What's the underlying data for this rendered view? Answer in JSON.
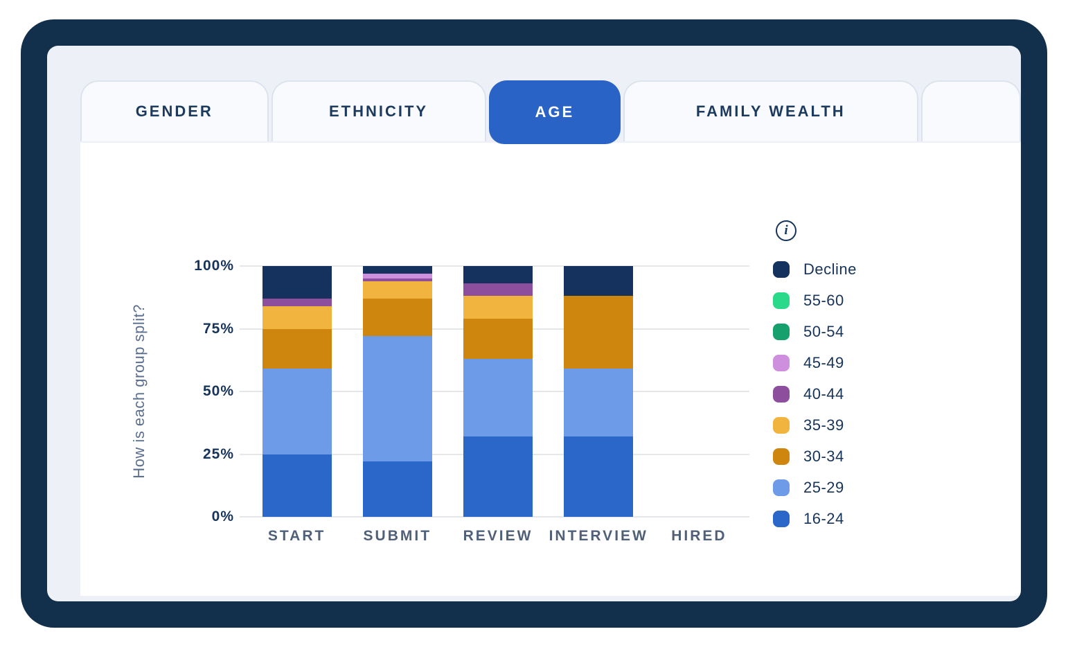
{
  "tabs": [
    {
      "label": "GENDER",
      "active": false
    },
    {
      "label": "ETHNICITY",
      "active": false
    },
    {
      "label": "AGE",
      "active": true
    },
    {
      "label": "FAMILY WEALTH",
      "active": false
    },
    {
      "label": "",
      "active": false
    }
  ],
  "legend": {
    "info_glyph": "i"
  },
  "colors": {
    "frame": "#122f4c",
    "screen_bg": "#edf1f7",
    "active_tab": "#2a63c6",
    "panel": "#ffffff",
    "gridline": "#e5e6e9"
  },
  "chart_data": {
    "type": "bar",
    "subtype": "stacked-percent",
    "title": "",
    "xlabel": "",
    "ylabel": "How is each group split?",
    "ylim": [
      0,
      100
    ],
    "yticks": [
      "100%",
      "75%",
      "50%",
      "25%",
      "0%"
    ],
    "grid": true,
    "legend_position": "right",
    "categories": [
      "START",
      "SUBMIT",
      "REVIEW",
      "INTERVIEW",
      "HIRED"
    ],
    "series": [
      {
        "name": "16-24",
        "color": "#2b66c9",
        "values": [
          25,
          22,
          32,
          32,
          0
        ]
      },
      {
        "name": "25-29",
        "color": "#6d9be8",
        "values": [
          34,
          50,
          31,
          27,
          0
        ]
      },
      {
        "name": "30-34",
        "color": "#cf860f",
        "values": [
          16,
          15,
          16,
          29,
          0
        ]
      },
      {
        "name": "35-39",
        "color": "#f1b53f",
        "values": [
          9,
          7,
          9,
          0,
          0
        ]
      },
      {
        "name": "40-44",
        "color": "#8d4f9d",
        "values": [
          3,
          1,
          5,
          0,
          0
        ]
      },
      {
        "name": "45-49",
        "color": "#cf8fdf",
        "values": [
          0,
          2,
          0,
          0,
          0
        ]
      },
      {
        "name": "50-54",
        "color": "#16a06d",
        "values": [
          0,
          0,
          0,
          0,
          0
        ]
      },
      {
        "name": "55-60",
        "color": "#2ad989",
        "values": [
          0,
          0,
          0,
          0,
          0
        ]
      },
      {
        "name": "Decline",
        "color": "#14325d",
        "values": [
          13,
          3,
          7,
          12,
          0
        ]
      }
    ]
  }
}
